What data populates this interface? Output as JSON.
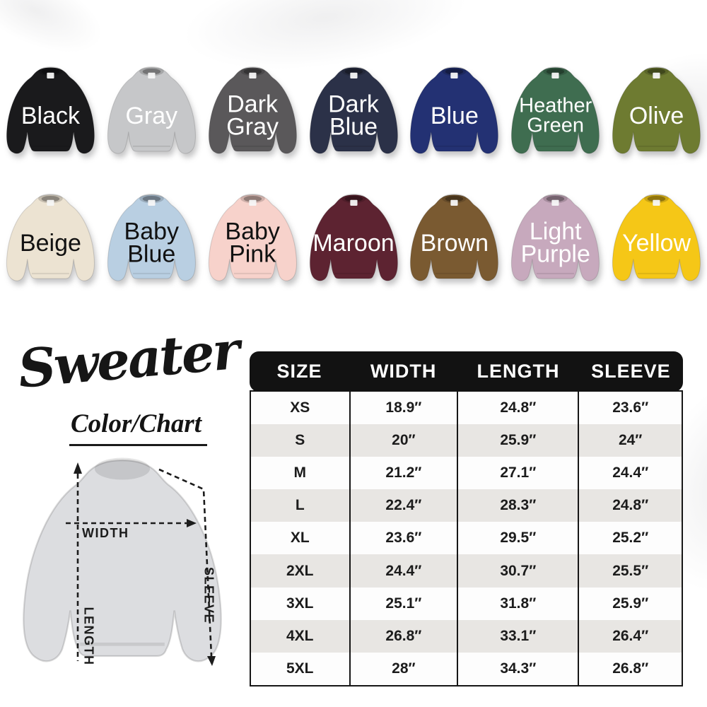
{
  "title": {
    "script": "Sweater",
    "subtitle": "Color/Chart"
  },
  "colors_grid": {
    "rows": [
      {
        "items": [
          {
            "name": "black",
            "label_lines": [
              "Black"
            ],
            "color": "#1a1a1c",
            "label_color": "#ffffff"
          },
          {
            "name": "gray",
            "label_lines": [
              "Gray"
            ],
            "color": "#c6c7c9",
            "label_color": "#ffffff"
          },
          {
            "name": "dark-gray",
            "label_lines": [
              "Dark",
              "Gray"
            ],
            "color": "#5a585a",
            "label_color": "#ffffff"
          },
          {
            "name": "dark-blue",
            "label_lines": [
              "Dark",
              "Blue"
            ],
            "color": "#2b3148",
            "label_color": "#ffffff"
          },
          {
            "name": "blue",
            "label_lines": [
              "Blue"
            ],
            "color": "#233173",
            "label_color": "#ffffff"
          },
          {
            "name": "heather-green",
            "label_lines": [
              "Heather",
              "Green"
            ],
            "color": "#3f6d50",
            "label_color": "#ffffff"
          },
          {
            "name": "olive",
            "label_lines": [
              "Olive"
            ],
            "color": "#6e7b31",
            "label_color": "#ffffff"
          }
        ]
      },
      {
        "items": [
          {
            "name": "beige",
            "label_lines": [
              "Beige"
            ],
            "color": "#ece3d2",
            "label_color": "#111111"
          },
          {
            "name": "baby-blue",
            "label_lines": [
              "Baby",
              "Blue"
            ],
            "color": "#b9cfe2",
            "label_color": "#111111"
          },
          {
            "name": "baby-pink",
            "label_lines": [
              "Baby",
              "Pink"
            ],
            "color": "#f7d2cb",
            "label_color": "#111111"
          },
          {
            "name": "maroon",
            "label_lines": [
              "Maroon"
            ],
            "color": "#5d2331",
            "label_color": "#ffffff"
          },
          {
            "name": "brown",
            "label_lines": [
              "Brown"
            ],
            "color": "#7a5a31",
            "label_color": "#ffffff"
          },
          {
            "name": "light-purple",
            "label_lines": [
              "Light",
              "Purple"
            ],
            "color": "#c7a9bd",
            "label_color": "#ffffff"
          },
          {
            "name": "yellow",
            "label_lines": [
              "Yellow"
            ],
            "color": "#f5c717",
            "label_color": "#ffffff"
          }
        ]
      }
    ]
  },
  "diagram": {
    "shirt_color": "#dcdde0",
    "labels": {
      "width": "WIDTH",
      "length": "LENGTH",
      "sleeve": "SLEEVE"
    }
  },
  "chart_data": {
    "type": "table",
    "title": "Sweater Color/Chart size table",
    "columns": [
      "SIZE",
      "WIDTH",
      "LENGTH",
      "SLEEVE"
    ],
    "rows": [
      [
        "XS",
        "18.9″",
        "24.8″",
        "23.6″"
      ],
      [
        "S",
        "20″",
        "25.9″",
        "24″"
      ],
      [
        "M",
        "21.2″",
        "27.1″",
        "24.4″"
      ],
      [
        "L",
        "22.4″",
        "28.3″",
        "24.8″"
      ],
      [
        "XL",
        "23.6″",
        "29.5″",
        "25.2″"
      ],
      [
        "2XL",
        "24.4″",
        "30.7″",
        "25.5″"
      ],
      [
        "3XL",
        "25.1″",
        "31.8″",
        "25.9″"
      ],
      [
        "4XL",
        "26.8″",
        "33.1″",
        "26.4″"
      ],
      [
        "5XL",
        "28″",
        "34.3″",
        "26.8″"
      ]
    ],
    "header_bg": "#121212",
    "header_text_color": "#ffffff",
    "stripe_color": "#e8e6e3"
  }
}
